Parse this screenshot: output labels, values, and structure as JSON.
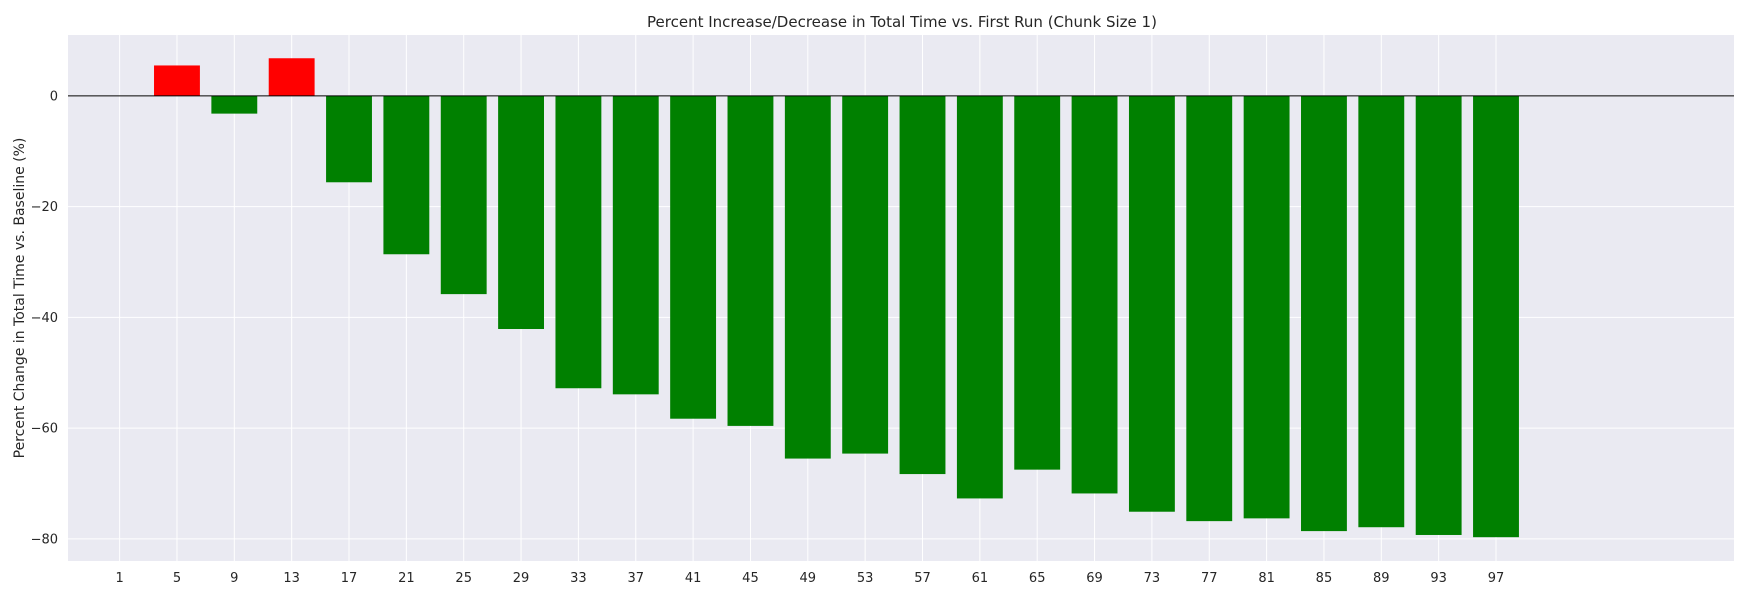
{
  "chart_data": {
    "type": "bar",
    "title": "Percent Increase/Decrease in Total Time vs. First Run (Chunk Size 1)",
    "xlabel": "",
    "ylabel": "Percent Change in Total Time vs. Baseline (%)",
    "categories": [
      "1",
      "5",
      "9",
      "13",
      "17",
      "21",
      "25",
      "29",
      "33",
      "37",
      "41",
      "45",
      "49",
      "53",
      "57",
      "61",
      "65",
      "69",
      "73",
      "77",
      "81",
      "85",
      "89",
      "93",
      "97"
    ],
    "values": [
      0,
      5.5,
      -3.2,
      6.8,
      -15.6,
      -28.6,
      -35.8,
      -42.1,
      -52.8,
      -53.9,
      -58.3,
      -59.6,
      -65.5,
      -64.6,
      -68.3,
      -72.7,
      -67.5,
      -71.8,
      -75.1,
      -76.8,
      -76.3,
      -78.6,
      -77.9,
      -79.3,
      -79.7
    ],
    "colors": {
      "increase": "#ff0000",
      "decrease": "#008000",
      "zero_line": "#000000",
      "plot_background": "#eaeaf2",
      "grid": "#ffffff"
    },
    "yticks": [
      0,
      -20,
      -40,
      -60,
      -80
    ],
    "ylim": [
      -84,
      11
    ],
    "xlim": [
      -2.6,
      113.6
    ],
    "grid": true,
    "legend": "none"
  }
}
